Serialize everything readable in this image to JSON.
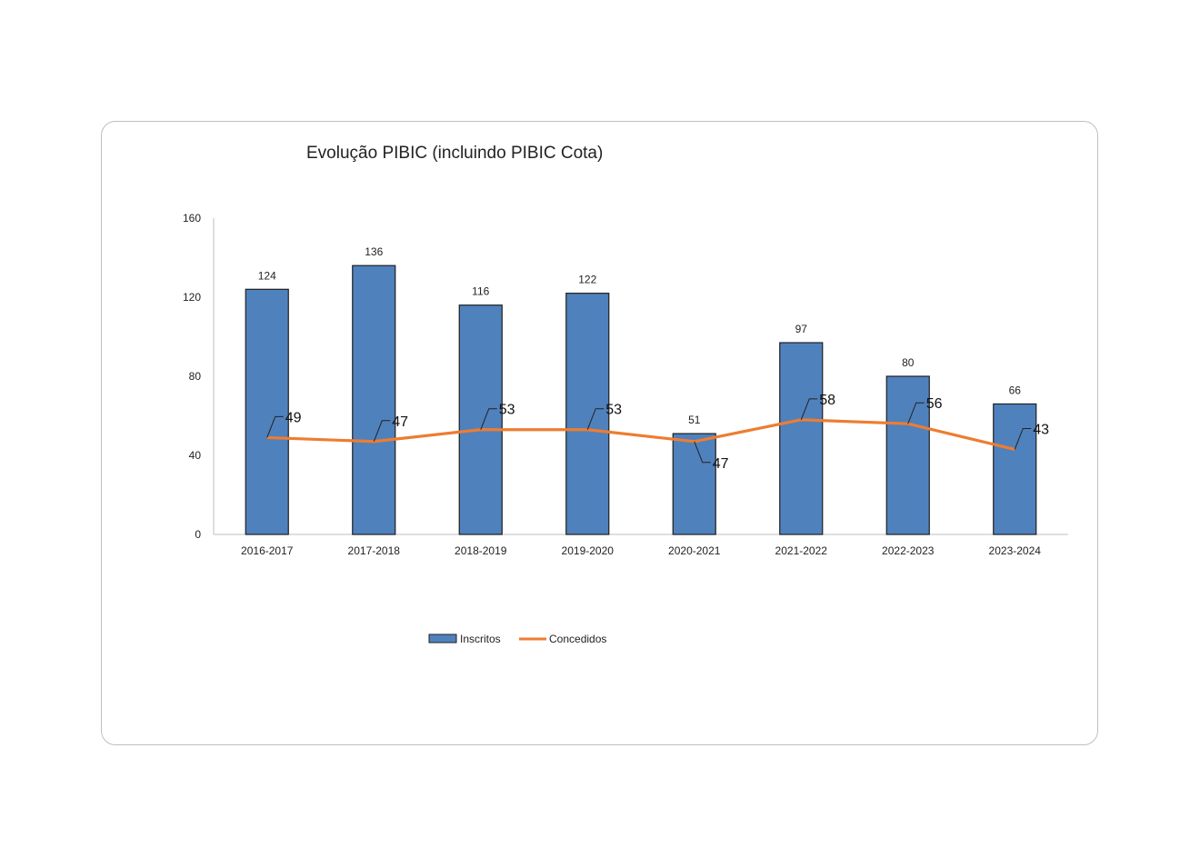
{
  "chart_data": {
    "type": "bar",
    "title": "Evolução PIBIC (incluindo PIBIC Cota)",
    "categories": [
      "2016-2017",
      "2017-2018",
      "2018-2019",
      "2019-2020",
      "2020-2021",
      "2021-2022",
      "2022-2023",
      "2023-2024"
    ],
    "series": [
      {
        "name": "Inscritos",
        "type": "bar",
        "color": "#4f81bd",
        "values": [
          124,
          136,
          116,
          122,
          51,
          97,
          80,
          66
        ]
      },
      {
        "name": "Concedidos",
        "type": "line",
        "color": "#ed7d31",
        "values": [
          49,
          47,
          53,
          53,
          47,
          58,
          56,
          43
        ]
      }
    ],
    "yticks": [
      0,
      40,
      80,
      120,
      160
    ],
    "ylim": [
      0,
      160
    ],
    "xlabel": "",
    "ylabel": "",
    "grid": false,
    "legend_position": "bottom"
  }
}
